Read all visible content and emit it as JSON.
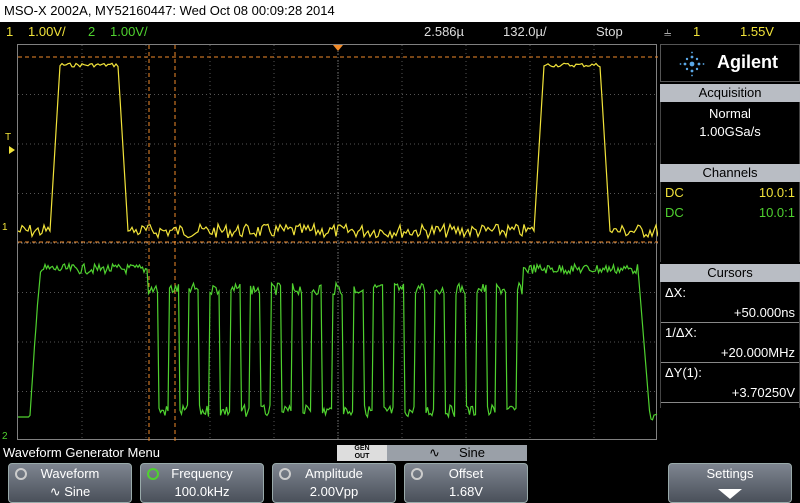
{
  "title_bar": {
    "text": "MSO-X 2002A, MY52160447: Wed Oct 08 00:09:28 2014"
  },
  "status": {
    "ch1_num": "1",
    "ch1_scale": "1.00V/",
    "ch2_num": "2",
    "ch2_scale": "1.00V/",
    "timebase": "2.586µ",
    "delay": "132.0µ/",
    "run_state": "Stop",
    "trigger_source": "1",
    "trigger_level": "1.55V"
  },
  "brand": {
    "name": "Agilent"
  },
  "acquisition": {
    "header": "Acquisition",
    "mode": "Normal",
    "rate": "1.00GSa/s"
  },
  "channels": {
    "header": "Channels",
    "rows": [
      {
        "coupling": "DC",
        "probe": "10.0:1"
      },
      {
        "coupling": "DC",
        "probe": "10.0:1"
      }
    ]
  },
  "cursors": {
    "header": "Cursors",
    "dx_label": "ΔX:",
    "dx_value": "+50.000ns",
    "inv_label": "1/ΔX:",
    "inv_value": "+20.000MHz",
    "dy_label": "ΔY(1):",
    "dy_value": "+3.70250V"
  },
  "markers": {
    "ch1": "1",
    "ch2": "2",
    "trig": "T"
  },
  "menu": {
    "title": "Waveform Generator Menu",
    "gen_out_line1": "GEN",
    "gen_out_line2": "OUT",
    "gen_wave_glyph": "∿",
    "gen_wave_name": "Sine",
    "softkeys": [
      {
        "label": "Waveform",
        "value": "∿ Sine"
      },
      {
        "label": "Frequency",
        "value": "100.0kHz"
      },
      {
        "label": "Amplitude",
        "value": "2.00Vpp"
      },
      {
        "label": "Offset",
        "value": "1.68V"
      },
      {
        "label": "Settings",
        "value": ""
      }
    ]
  },
  "colors": {
    "ch1": "#f1e33a",
    "ch2": "#4fd12f",
    "cursor": "#f08a2a",
    "grid": "#555555"
  },
  "waveforms": {
    "ch1_mode": "pulse",
    "ch2_mode": "burst-square"
  }
}
